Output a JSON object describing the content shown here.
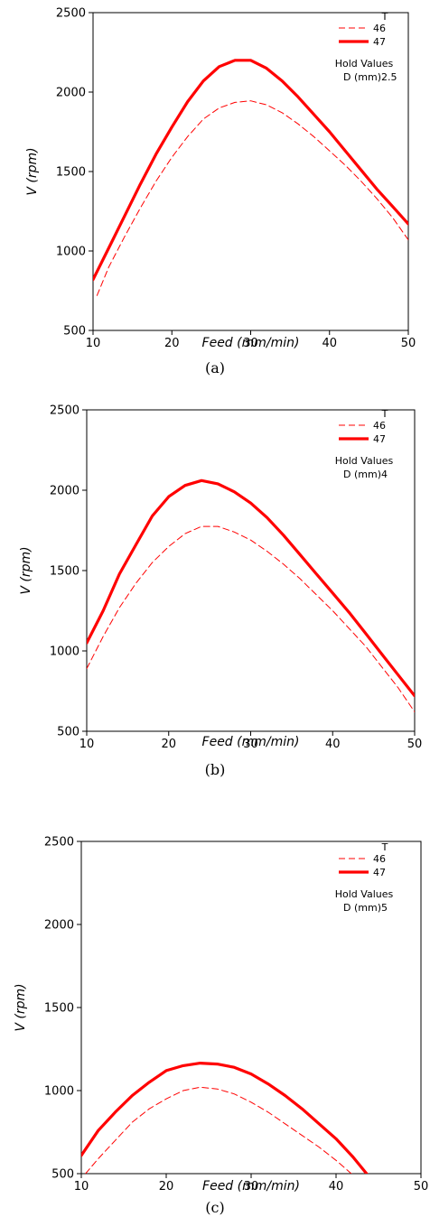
{
  "chart_data": [
    {
      "type": "line",
      "caption": "(a)",
      "xlabel": "Feed (mm/min)",
      "ylabel": "V (rpm)",
      "xlim": [
        10,
        50
      ],
      "ylim": [
        500,
        2500
      ],
      "xticks": [
        "10",
        "20",
        "30",
        "40",
        "50"
      ],
      "yticks": [
        "500",
        "1000",
        "1500",
        "2000",
        "2500"
      ],
      "grid": false,
      "legend": {
        "title": "T",
        "position": "top-right",
        "hold_title": "Hold Values",
        "hold_label": "D (mm)",
        "hold_value": "2.5"
      },
      "series": [
        {
          "name": "46",
          "style": "dashed",
          "x": [
            10.5,
            12,
            14,
            16,
            18,
            20,
            22,
            24,
            26,
            28,
            30,
            32,
            34,
            36,
            38,
            40,
            42,
            44,
            46,
            48,
            50
          ],
          "y": [
            720,
            900,
            1090,
            1270,
            1440,
            1590,
            1720,
            1830,
            1900,
            1935,
            1945,
            1920,
            1870,
            1800,
            1720,
            1630,
            1540,
            1440,
            1330,
            1210,
            1070
          ]
        },
        {
          "name": "47",
          "style": "solid",
          "x": [
            10,
            12,
            14,
            16,
            18,
            20,
            22,
            24,
            26,
            28,
            30,
            32,
            34,
            36,
            38,
            40,
            42,
            44,
            46,
            48,
            50
          ],
          "y": [
            820,
            1020,
            1220,
            1420,
            1610,
            1780,
            1940,
            2070,
            2160,
            2200,
            2200,
            2150,
            2070,
            1970,
            1860,
            1750,
            1630,
            1510,
            1390,
            1280,
            1170
          ]
        }
      ]
    },
    {
      "type": "line",
      "caption": "(b)",
      "xlabel": "Feed (mm/min)",
      "ylabel": "V (rpm)",
      "xlim": [
        10,
        50
      ],
      "ylim": [
        500,
        2500
      ],
      "xticks": [
        "10",
        "20",
        "30",
        "40",
        "50"
      ],
      "yticks": [
        "500",
        "1000",
        "1500",
        "2000",
        "2500"
      ],
      "grid": false,
      "legend": {
        "title": "T",
        "position": "top-right",
        "hold_title": "Hold Values",
        "hold_label": "D (mm)",
        "hold_value": "4"
      },
      "series": [
        {
          "name": "46",
          "style": "dashed",
          "x": [
            10,
            12,
            14,
            16,
            18,
            20,
            22,
            24,
            26,
            28,
            30,
            32,
            34,
            36,
            38,
            40,
            42,
            44,
            46,
            48,
            50
          ],
          "y": [
            890,
            1090,
            1270,
            1420,
            1550,
            1650,
            1730,
            1775,
            1775,
            1740,
            1690,
            1620,
            1540,
            1450,
            1350,
            1250,
            1140,
            1030,
            900,
            770,
            620
          ]
        },
        {
          "name": "47",
          "style": "solid",
          "x": [
            10,
            12,
            14,
            16,
            18,
            20,
            22,
            24,
            26,
            28,
            30,
            32,
            34,
            36,
            38,
            40,
            42,
            44,
            46,
            48,
            50
          ],
          "y": [
            1050,
            1250,
            1480,
            1660,
            1840,
            1960,
            2030,
            2060,
            2040,
            1990,
            1920,
            1830,
            1720,
            1600,
            1480,
            1360,
            1240,
            1110,
            980,
            850,
            720
          ]
        }
      ]
    },
    {
      "type": "line",
      "caption": "(c)",
      "xlabel": "Feed (mm/min)",
      "ylabel": "V (rpm)",
      "xlim": [
        10,
        50
      ],
      "ylim": [
        500,
        2500
      ],
      "xticks": [
        "10",
        "20",
        "30",
        "40",
        "50"
      ],
      "yticks": [
        "500",
        "1000",
        "1500",
        "2000",
        "2500"
      ],
      "grid": false,
      "legend": {
        "title": "T",
        "position": "top-right",
        "hold_title": "Hold Values",
        "hold_label": "D (mm)",
        "hold_value": "5"
      },
      "series": [
        {
          "name": "46",
          "style": "dashed",
          "x": [
            10.5,
            12,
            14,
            16,
            18,
            20,
            22,
            24,
            26,
            28,
            30,
            32,
            34,
            36,
            38,
            40,
            41.8
          ],
          "y": [
            500,
            590,
            700,
            810,
            890,
            950,
            1000,
            1020,
            1010,
            980,
            930,
            870,
            800,
            730,
            660,
            580,
            500
          ]
        },
        {
          "name": "47",
          "style": "solid",
          "x": [
            10,
            12,
            14,
            16,
            18,
            20,
            22,
            24,
            26,
            28,
            30,
            32,
            34,
            36,
            38,
            40,
            42,
            43.6
          ],
          "y": [
            610,
            760,
            870,
            970,
            1050,
            1120,
            1150,
            1165,
            1160,
            1140,
            1100,
            1040,
            970,
            890,
            800,
            710,
            600,
            500
          ]
        }
      ]
    }
  ]
}
